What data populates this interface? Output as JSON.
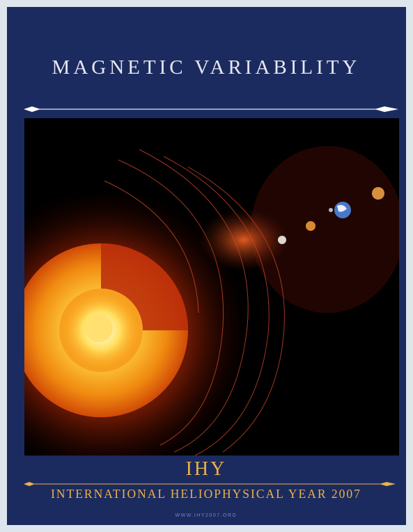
{
  "poster": {
    "title": "MAGNETIC VARIABILITY",
    "acronym": "IHY",
    "subtitle": "INTERNATIONAL HELIOPHYSICAL YEAR 2007",
    "url": "WWW.IHY2007.ORG"
  }
}
